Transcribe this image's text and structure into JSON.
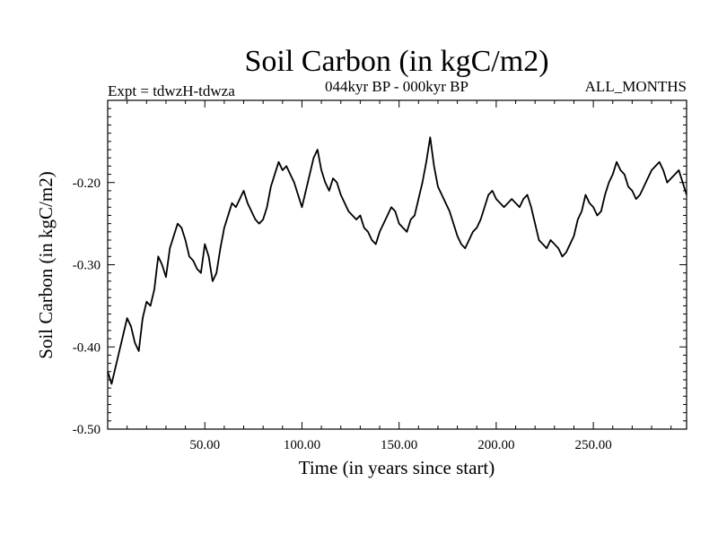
{
  "chart_data": {
    "type": "line",
    "title": "Soil Carbon (in kgC/m2)",
    "subtitle_left": "Expt = tdwzH-tdwza",
    "subtitle_center": "044kyr BP - 000kyr BP",
    "subtitle_right": "ALL_MONTHS",
    "xlabel": "Time (in years since start)",
    "ylabel": "Soil Carbon (in kgC/m2)",
    "xlim": [
      0,
      298
    ],
    "ylim": [
      -0.5,
      -0.1
    ],
    "x_ticks": [
      50,
      100,
      150,
      200,
      250
    ],
    "x_tick_labels": [
      "50.00",
      "100.00",
      "150.00",
      "200.00",
      "250.00"
    ],
    "y_ticks": [
      -0.5,
      -0.4,
      -0.3,
      -0.2
    ],
    "y_tick_labels": [
      "-0.50",
      "-0.40",
      "-0.30",
      "-0.20"
    ],
    "grid": false,
    "series": [
      {
        "color": "#000000",
        "x": [
          0,
          2,
          4,
          6,
          8,
          10,
          12,
          14,
          16,
          18,
          20,
          22,
          24,
          26,
          28,
          30,
          32,
          34,
          36,
          38,
          40,
          42,
          44,
          46,
          48,
          50,
          52,
          54,
          56,
          58,
          60,
          62,
          64,
          66,
          68,
          70,
          72,
          74,
          76,
          78,
          80,
          82,
          84,
          86,
          88,
          90,
          92,
          94,
          96,
          98,
          100,
          102,
          104,
          106,
          108,
          110,
          112,
          114,
          116,
          118,
          120,
          122,
          124,
          126,
          128,
          130,
          132,
          134,
          136,
          138,
          140,
          142,
          144,
          146,
          148,
          150,
          152,
          154,
          156,
          158,
          160,
          162,
          164,
          166,
          168,
          170,
          172,
          174,
          176,
          178,
          180,
          182,
          184,
          186,
          188,
          190,
          192,
          194,
          196,
          198,
          200,
          202,
          204,
          206,
          208,
          210,
          212,
          214,
          216,
          218,
          220,
          222,
          224,
          226,
          228,
          230,
          232,
          234,
          236,
          238,
          240,
          242,
          244,
          246,
          248,
          250,
          252,
          254,
          256,
          258,
          260,
          262,
          264,
          266,
          268,
          270,
          272,
          274,
          276,
          278,
          280,
          282,
          284,
          286,
          288,
          290,
          292,
          294,
          296,
          298
        ],
        "values": [
          -0.43,
          -0.445,
          -0.425,
          -0.405,
          -0.385,
          -0.365,
          -0.375,
          -0.395,
          -0.405,
          -0.365,
          -0.345,
          -0.35,
          -0.33,
          -0.29,
          -0.3,
          -0.315,
          -0.28,
          -0.265,
          -0.25,
          -0.255,
          -0.27,
          -0.29,
          -0.295,
          -0.305,
          -0.31,
          -0.275,
          -0.29,
          -0.32,
          -0.31,
          -0.28,
          -0.255,
          -0.24,
          -0.225,
          -0.23,
          -0.22,
          -0.21,
          -0.225,
          -0.235,
          -0.245,
          -0.25,
          -0.245,
          -0.23,
          -0.205,
          -0.19,
          -0.175,
          -0.185,
          -0.18,
          -0.19,
          -0.2,
          -0.215,
          -0.23,
          -0.21,
          -0.19,
          -0.17,
          -0.16,
          -0.185,
          -0.2,
          -0.21,
          -0.195,
          -0.2,
          -0.215,
          -0.225,
          -0.235,
          -0.24,
          -0.245,
          -0.24,
          -0.255,
          -0.26,
          -0.27,
          -0.275,
          -0.26,
          -0.25,
          -0.24,
          -0.23,
          -0.235,
          -0.25,
          -0.255,
          -0.26,
          -0.245,
          -0.24,
          -0.22,
          -0.2,
          -0.175,
          -0.145,
          -0.18,
          -0.205,
          -0.215,
          -0.225,
          -0.235,
          -0.25,
          -0.265,
          -0.275,
          -0.28,
          -0.27,
          -0.26,
          -0.255,
          -0.245,
          -0.23,
          -0.215,
          -0.21,
          -0.22,
          -0.225,
          -0.23,
          -0.225,
          -0.22,
          -0.225,
          -0.23,
          -0.22,
          -0.215,
          -0.23,
          -0.25,
          -0.27,
          -0.275,
          -0.28,
          -0.27,
          -0.275,
          -0.28,
          -0.29,
          -0.285,
          -0.275,
          -0.265,
          -0.245,
          -0.235,
          -0.215,
          -0.225,
          -0.23,
          -0.24,
          -0.235,
          -0.215,
          -0.2,
          -0.19,
          -0.175,
          -0.185,
          -0.19,
          -0.205,
          -0.21,
          -0.22,
          -0.215,
          -0.205,
          -0.195,
          -0.185,
          -0.18,
          -0.175,
          -0.185,
          -0.2,
          -0.195,
          -0.19,
          -0.185,
          -0.2,
          -0.215
        ]
      }
    ]
  }
}
